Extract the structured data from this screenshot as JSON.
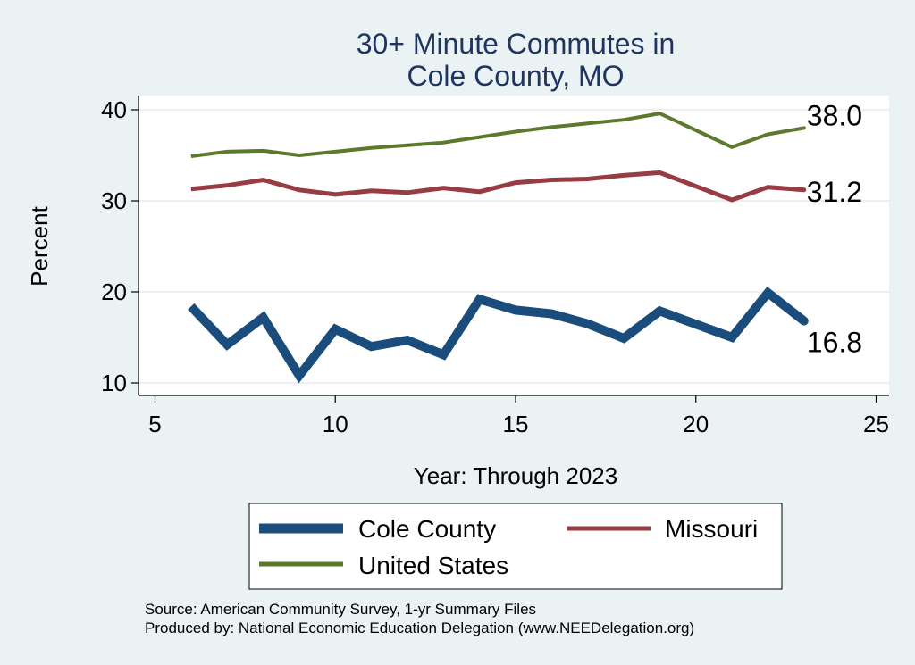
{
  "chart_data": {
    "type": "line",
    "title": [
      "30+ Minute Commutes in",
      "Cole County, MO"
    ],
    "xlabel": "Year: Through 2023",
    "ylabel": "Percent",
    "xlim": [
      5,
      25
    ],
    "ylim": [
      9,
      41
    ],
    "xticks": [
      5,
      10,
      15,
      20,
      25
    ],
    "yticks": [
      10,
      20,
      30,
      40
    ],
    "grid": true,
    "x": [
      6,
      7,
      8,
      9,
      10,
      11,
      12,
      13,
      14,
      15,
      16,
      17,
      18,
      19,
      21,
      22,
      23
    ],
    "series": [
      {
        "name": "Cole County",
        "color": "#1b4d7c",
        "values": [
          18.4,
          14.2,
          17.2,
          10.8,
          15.9,
          14.0,
          14.7,
          13.1,
          19.2,
          18.0,
          17.6,
          16.5,
          14.9,
          17.9,
          15.0,
          19.9,
          16.8
        ],
        "end_label": "16.8"
      },
      {
        "name": "Missouri",
        "color": "#963c42",
        "values": [
          31.3,
          31.7,
          32.3,
          31.2,
          30.7,
          31.1,
          30.9,
          31.4,
          31.0,
          32.0,
          32.3,
          32.4,
          32.8,
          33.1,
          30.1,
          31.5,
          31.2
        ],
        "end_label": "31.2"
      },
      {
        "name": "United States",
        "color": "#5b7a2e",
        "values": [
          34.9,
          35.4,
          35.5,
          35.0,
          35.4,
          35.8,
          36.1,
          36.4,
          37.0,
          37.6,
          38.1,
          38.5,
          38.9,
          39.6,
          35.9,
          37.3,
          38.0
        ],
        "end_label": "38.0"
      }
    ],
    "legend": {
      "placement": "bottom",
      "items": [
        "Cole County",
        "Missouri",
        "United States"
      ]
    }
  },
  "notes": {
    "source": "Source: American Community Survey, 1-yr Summary Files",
    "produced": "Produced by: National Economic Education Delegation (www.NEEDelegation.org)"
  }
}
